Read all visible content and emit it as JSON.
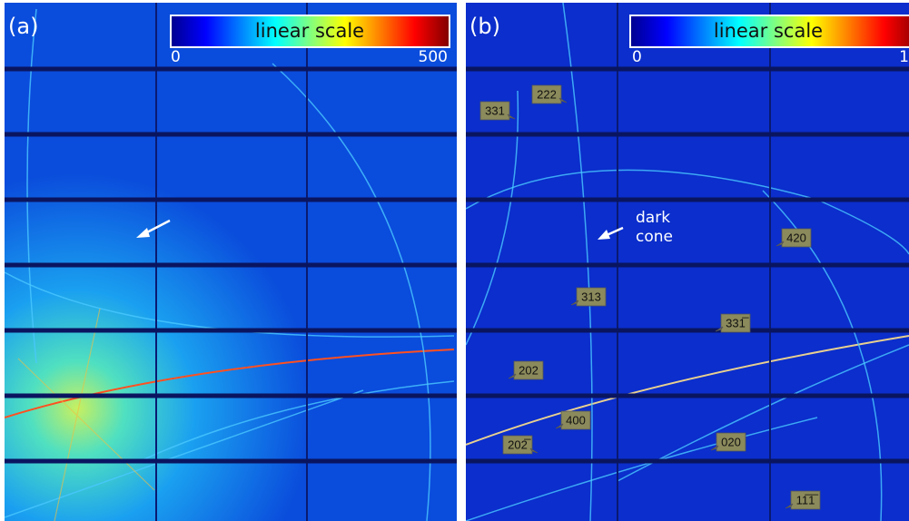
{
  "panels": [
    {
      "label": "(a)",
      "colorbar": {
        "title": "linear scale",
        "min": 0,
        "max": 500
      }
    },
    {
      "label": "(b)",
      "colorbar": {
        "title": "linear scale",
        "min": 0,
        "max": 1
      },
      "annotation_lines": [
        "dark",
        "cone"
      ],
      "reflections": [
        "331",
        "222",
        "420",
        "313",
        "331̅",
        "202",
        "400",
        "202̅",
        "020",
        "11̅1̅"
      ]
    }
  ]
}
